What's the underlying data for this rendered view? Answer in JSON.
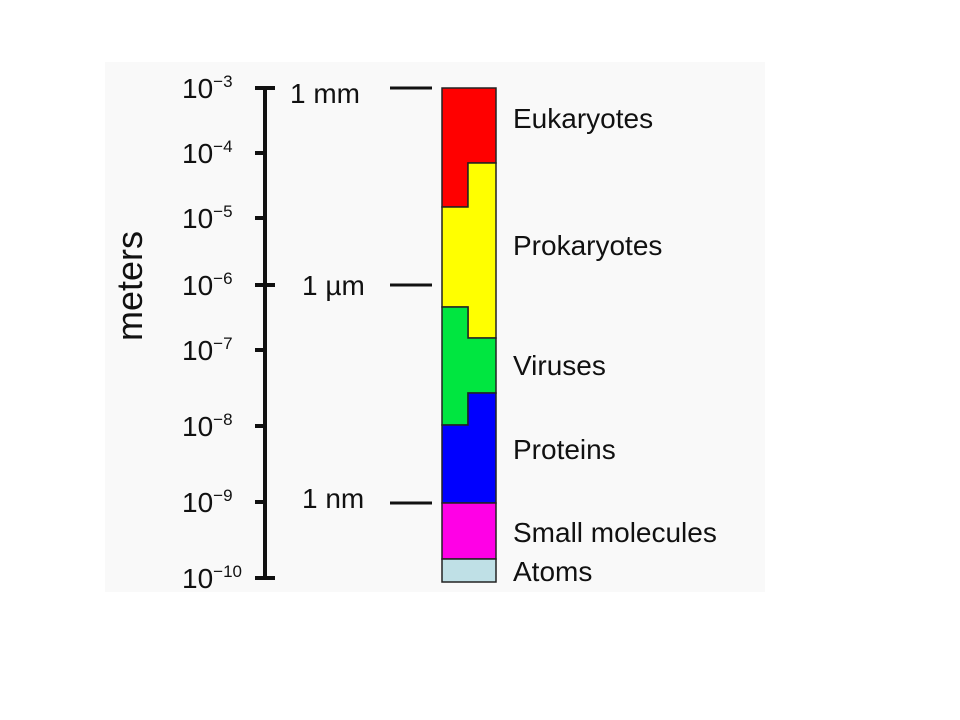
{
  "axis_label": "meters",
  "ticks": [
    {
      "base": "10",
      "exponent": "−3"
    },
    {
      "base": "10",
      "exponent": "−4"
    },
    {
      "base": "10",
      "exponent": "−5"
    },
    {
      "base": "10",
      "exponent": "−6"
    },
    {
      "base": "10",
      "exponent": "−7"
    },
    {
      "base": "10",
      "exponent": "−8"
    },
    {
      "base": "10",
      "exponent": "−9"
    },
    {
      "base": "10",
      "exponent": "−10"
    }
  ],
  "scale_marks": [
    "1 mm",
    "1 µm",
    "1 nm"
  ],
  "groups": [
    "Eukaryotes",
    "Prokaryotes",
    "Viruses",
    "Proteins",
    "Small molecules",
    "Atoms"
  ]
}
